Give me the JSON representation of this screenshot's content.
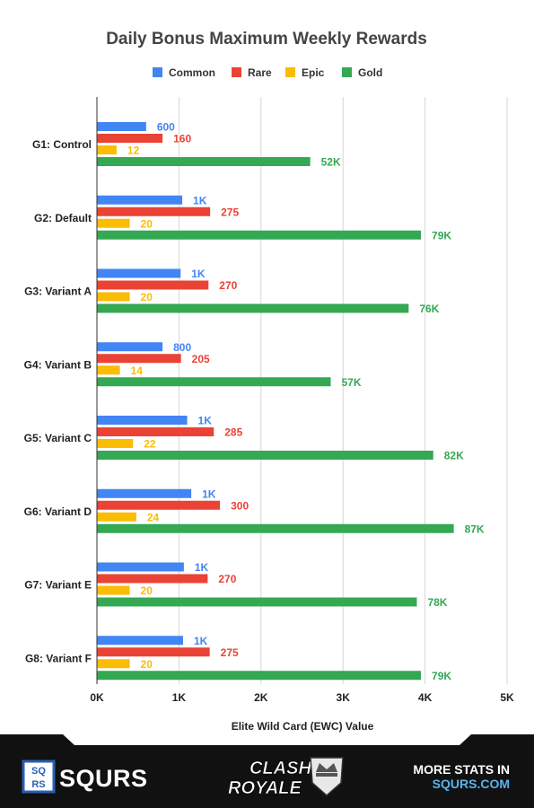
{
  "chart_data": {
    "type": "bar",
    "orientation": "horizontal",
    "title": "Daily Bonus Maximum Weekly Rewards",
    "xlabel": "Elite Wild Card (EWC) Value",
    "xlim": [
      0,
      5000
    ],
    "x_ticks": [
      "0K",
      "1K",
      "2K",
      "3K",
      "4K",
      "5K"
    ],
    "grid": true,
    "legend_position": "top",
    "categories": [
      "G1: Control",
      "G2: Default",
      "G3: Variant A",
      "G4: Variant B",
      "G5: Variant C",
      "G6: Variant D",
      "G7: Variant E",
      "G8: Variant F"
    ],
    "series": [
      {
        "name": "Common",
        "color": "#4285f4",
        "values": [
          600,
          1040,
          1020,
          800,
          1100,
          1150,
          1060,
          1050
        ],
        "labels": [
          "600",
          "1K",
          "1K",
          "800",
          "1K",
          "1K",
          "1K",
          "1K"
        ]
      },
      {
        "name": "Rare",
        "color": "#ea4335",
        "values": [
          800,
          1380,
          1360,
          1025,
          1425,
          1500,
          1350,
          1375
        ],
        "labels": [
          "160",
          "275",
          "270",
          "205",
          "285",
          "300",
          "270",
          "275"
        ]
      },
      {
        "name": "Epic",
        "color": "#fbbc04",
        "values": [
          240,
          400,
          400,
          280,
          440,
          480,
          400,
          400
        ],
        "labels": [
          "12",
          "20",
          "20",
          "14",
          "22",
          "24",
          "20",
          "20"
        ]
      },
      {
        "name": "Gold",
        "color": "#34a853",
        "values": [
          2600,
          3950,
          3800,
          2850,
          4100,
          4350,
          3900,
          3950
        ],
        "labels": [
          "52K",
          "79K",
          "76K",
          "57K",
          "82K",
          "87K",
          "78K",
          "79K"
        ]
      }
    ]
  },
  "footer": {
    "brand_badge": [
      "SQ",
      "RS"
    ],
    "brand": "SQURS",
    "game_logo_line1": "CLASH",
    "game_logo_line2": "ROYALE",
    "cta_line1": "MORE STATS IN",
    "cta_line2": "SQURS.COM"
  },
  "colors": {
    "footer_bg": "#111111",
    "brand_blue": "#2b5fb4",
    "cta_blue": "#5ab3f0"
  }
}
